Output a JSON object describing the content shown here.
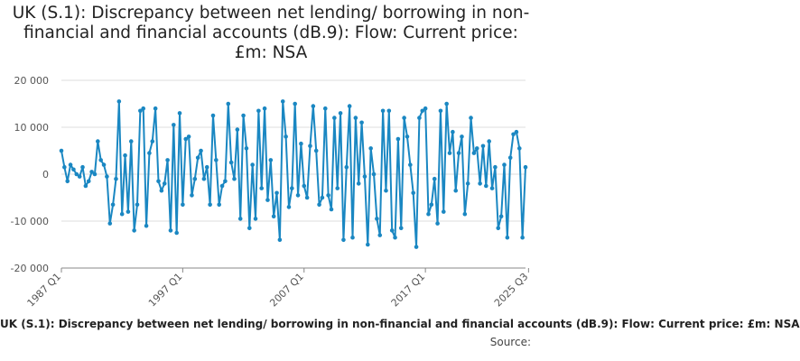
{
  "title": "UK (S.1): Discrepancy between net lending/ borrowing in non-financial and financial accounts (dB.9): Flow: Current price: £m: NSA",
  "source_label": "Source:",
  "colors": {
    "line": "#1a87c2",
    "grid": "#dddddd",
    "axis": "#888888"
  },
  "chart_data": {
    "type": "line",
    "title": "UK (S.1): Discrepancy between net lending/ borrowing in non-financial and financial accounts (dB.9): Flow: Current price: £m: NSA",
    "xlabel": "UK (S.1): Discrepancy between net lending/ borrowing in non-financial and financial accounts (dB.9): Flow: Current price: £m: NSA",
    "ylabel": "",
    "start": "1987 Q1",
    "ylim": [
      -20000,
      20000
    ],
    "y_ticks": [
      20000,
      10000,
      0,
      -10000,
      -20000
    ],
    "y_tick_labels": [
      "20 000",
      "10 000",
      "0",
      "-10 000",
      "-20 000"
    ],
    "x_tick_labels": [
      "1987 Q1",
      "1997 Q1",
      "2007 Q1",
      "2017 Q1",
      "2025 Q3"
    ],
    "x_tick_index": [
      0,
      40,
      80,
      120,
      154
    ],
    "grid": true,
    "series": [
      {
        "values": [
          5000,
          1500,
          -1500,
          2000,
          1000,
          0,
          -500,
          1500,
          -2500,
          -1500,
          500,
          0,
          7000,
          3000,
          2000,
          -500,
          -10500,
          -6500,
          -1000,
          15500,
          -8500,
          4000,
          -8000,
          7000,
          -12000,
          -6500,
          13500,
          14000,
          -11000,
          4500,
          7000,
          14000,
          -1500,
          -3500,
          -2000,
          3000,
          -12000,
          10500,
          -12500,
          13000,
          -6500,
          7500,
          8000,
          -4500,
          -1000,
          3500,
          5000,
          -1000,
          1500,
          -6500,
          12500,
          3000,
          -6500,
          -2500,
          -1500,
          15000,
          2500,
          -1000,
          9500,
          -9500,
          12500,
          5500,
          -11500,
          2000,
          -9500,
          13500,
          -3000,
          14000,
          -5500,
          3000,
          -9000,
          -4000,
          -14000,
          15500,
          8000,
          -7000,
          -3000,
          15000,
          -4500,
          6500,
          -2500,
          -5000,
          6000,
          14500,
          5000,
          -6500,
          -5000,
          14000,
          -4500,
          -7500,
          12000,
          -3000,
          13000,
          -14000,
          1500,
          14500,
          -13500,
          12000,
          -2000,
          11000,
          -500,
          -15000,
          5500,
          0,
          -9500,
          -13000,
          13500,
          -3500,
          13500,
          -12000,
          -13500,
          7500,
          -11500,
          12000,
          8000,
          2000,
          -4000,
          -15500,
          12000,
          13500,
          14000,
          -8500,
          -6500,
          -1000,
          -10500,
          13500,
          -8000,
          15000,
          4500,
          9000,
          -3500,
          4500,
          8000,
          -8500,
          -2000,
          12000,
          4500,
          5500,
          -2000,
          6000,
          -2500,
          7000,
          -3000,
          1500,
          -11500,
          -9000,
          2000,
          -13500,
          3500,
          8500,
          9000,
          5500,
          -13500,
          1500
        ]
      }
    ]
  }
}
